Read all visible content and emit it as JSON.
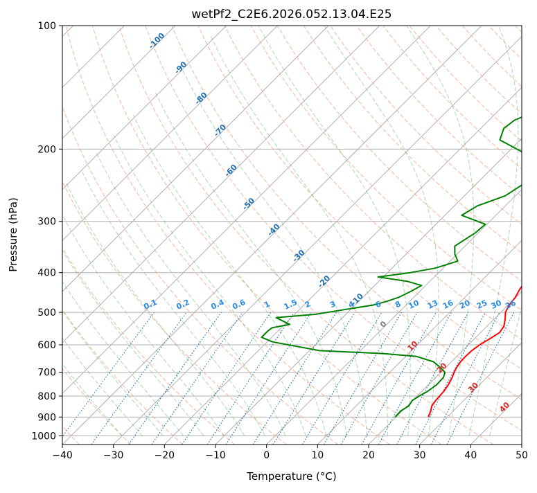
{
  "chart_data": {
    "type": "line",
    "title": "wetPf2_C2E6.2026.052.13.04.E25",
    "xlabel": "Temperature (°C)",
    "ylabel": "Pressure (hPa)",
    "xlim": [
      -40,
      50
    ],
    "ylim": [
      1050,
      100
    ],
    "y_scale": "log",
    "grid": true,
    "x_ticks": [
      "−40",
      "−30",
      "−20",
      "−10",
      "0",
      "10",
      "20",
      "30",
      "40",
      "50"
    ],
    "y_ticks": [
      "100",
      "200",
      "300",
      "400",
      "500",
      "600",
      "700",
      "800",
      "900",
      "1000"
    ],
    "series": [
      {
        "color": "#ff0000",
        "values": [
          [
            26.3,
            900
          ],
          [
            25.6,
            870
          ],
          [
            24.8,
            845
          ],
          [
            24.5,
            820
          ],
          [
            24.4,
            800
          ],
          [
            24.3,
            780
          ],
          [
            23.9,
            750
          ],
          [
            23.2,
            720
          ],
          [
            22.6,
            700
          ],
          [
            22.1,
            680
          ],
          [
            21.8,
            660
          ],
          [
            21.7,
            640
          ],
          [
            21.8,
            620
          ],
          [
            22.2,
            600
          ],
          [
            23.0,
            580
          ],
          [
            23.7,
            560
          ],
          [
            23.3,
            540
          ],
          [
            22.2,
            520
          ],
          [
            20.9,
            500
          ],
          [
            20.2,
            480
          ],
          [
            19.9,
            460
          ],
          [
            19.2,
            440
          ],
          [
            18.7,
            420
          ],
          [
            18.2,
            400
          ],
          [
            17.2,
            380
          ],
          [
            15.8,
            360
          ],
          [
            14.0,
            340
          ],
          [
            12.3,
            320
          ],
          [
            10.9,
            300
          ],
          [
            9.4,
            280
          ],
          [
            7.5,
            260
          ],
          [
            5.0,
            240
          ],
          [
            3.2,
            220
          ],
          [
            1.6,
            200
          ],
          [
            -0.3,
            180
          ],
          [
            -1.9,
            160
          ],
          [
            -3.8,
            140
          ],
          [
            -6.2,
            120
          ],
          [
            -7.5,
            110
          ],
          [
            -8.1,
            105
          ],
          [
            -8.1,
            100
          ]
        ]
      },
      {
        "color": "#008000",
        "values": [
          [
            19.8,
            900
          ],
          [
            19.7,
            870
          ],
          [
            20.3,
            845
          ],
          [
            19.9,
            820
          ],
          [
            20.4,
            800
          ],
          [
            21.1,
            780
          ],
          [
            21.6,
            750
          ],
          [
            21.5,
            720
          ],
          [
            20.8,
            700
          ],
          [
            18.8,
            680
          ],
          [
            16.5,
            660
          ],
          [
            12.0,
            640
          ],
          [
            5.0,
            630
          ],
          [
            -8.0,
            620
          ],
          [
            -19.0,
            590
          ],
          [
            -22.0,
            575
          ],
          [
            -22.0,
            555
          ],
          [
            -21.8,
            545
          ],
          [
            -19.0,
            535
          ],
          [
            -21.0,
            525
          ],
          [
            -23.0,
            515
          ],
          [
            -15.8,
            505
          ],
          [
            -6.5,
            480
          ],
          [
            -4.5,
            470
          ],
          [
            -3.0,
            460
          ],
          [
            -1.8,
            445
          ],
          [
            -0.8,
            430
          ],
          [
            -4.5,
            420
          ],
          [
            -11.0,
            410
          ],
          [
            -5.5,
            400
          ],
          [
            -1.5,
            390
          ],
          [
            1.5,
            375
          ],
          [
            -0.5,
            360
          ],
          [
            -2.0,
            345
          ],
          [
            -1.5,
            335
          ],
          [
            -0.6,
            320
          ],
          [
            -0.3,
            305
          ],
          [
            -6.7,
            290
          ],
          [
            -5.5,
            275
          ],
          [
            -2.0,
            260
          ],
          [
            -0.5,
            240
          ],
          [
            -1.2,
            225
          ],
          [
            -4.0,
            210
          ],
          [
            -14.0,
            190
          ],
          [
            -15.5,
            178
          ],
          [
            -15.0,
            170
          ],
          [
            -12.0,
            160
          ],
          [
            -8.5,
            150
          ],
          [
            -3.0,
            135
          ],
          [
            -1.5,
            125
          ],
          [
            -3.5,
            110
          ],
          [
            -4.0,
            100
          ]
        ]
      }
    ],
    "isotherm_colors": {
      "dry_adiabat": "#f4a582",
      "moist_adiabat": "#41ab5d",
      "mixing_ratio": "#1f78b4",
      "isotherm_label_cold": "#1f6fb4",
      "isotherm_label_warm": "#d62728",
      "isotherm_label_zero": "#808080"
    },
    "isotherm_labels": {
      "cold": [
        "-100",
        "-90",
        "-80",
        "-70",
        "-60",
        "-50",
        "-40",
        "-30",
        "-20",
        "-10"
      ],
      "zero": "0",
      "warm": [
        "10",
        "20",
        "30",
        "40"
      ]
    },
    "mixing_ratio_labels": [
      "0.1",
      "0.2",
      "0.4",
      "0.6",
      "1",
      "1.5",
      "2",
      "3",
      "4",
      "6",
      "8",
      "10",
      "13",
      "16",
      "20",
      "25",
      "30",
      "36"
    ]
  }
}
